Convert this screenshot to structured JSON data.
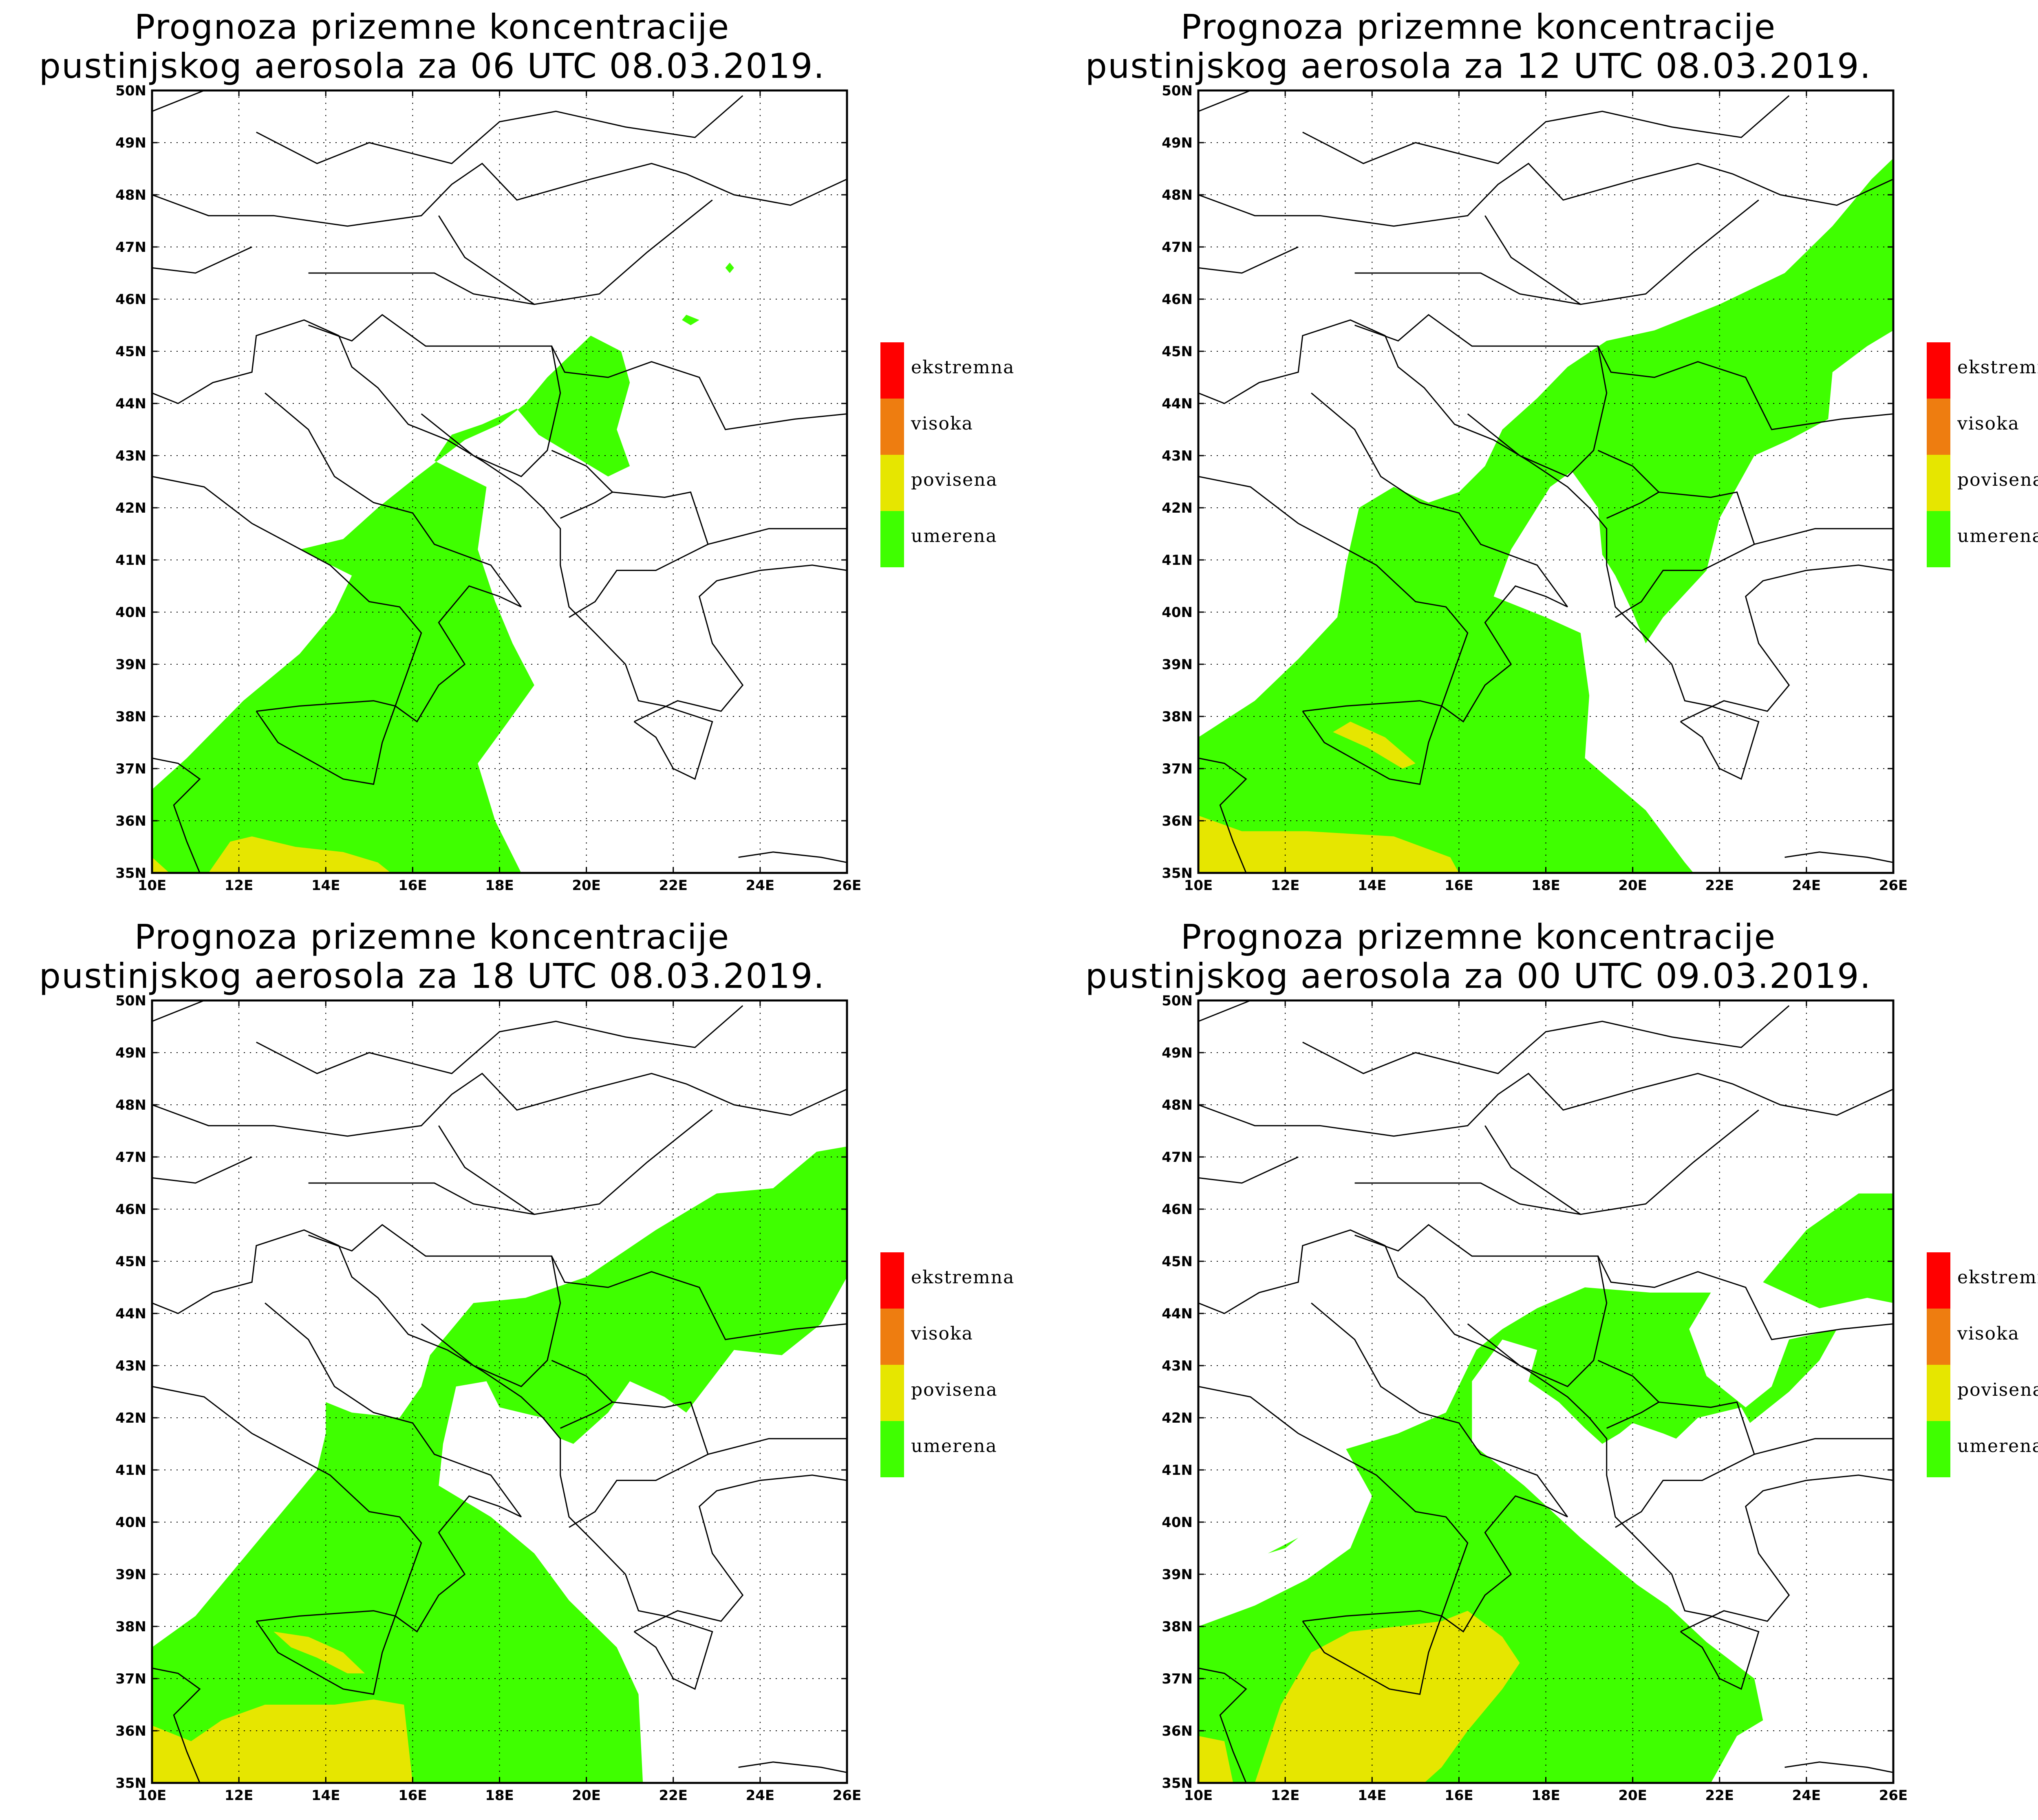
{
  "panels": [
    {
      "title_line1": "Prognoza prizemne koncentracije",
      "title_line2": "pustinjskog aerosola za 06 UTC 08.03.2019."
    },
    {
      "title_line1": "Prognoza prizemne koncentracije",
      "title_line2": "pustinjskog aerosola za 12 UTC 08.03.2019."
    },
    {
      "title_line1": "Prognoza prizemne koncentracije",
      "title_line2": "pustinjskog aerosola za 18 UTC 08.03.2019."
    },
    {
      "title_line1": "Prognoza prizemne koncentracije",
      "title_line2": "pustinjskog aerosola za 00 UTC 09.03.2019."
    }
  ],
  "axes": {
    "lat_labels": [
      "35N",
      "36N",
      "37N",
      "38N",
      "39N",
      "40N",
      "41N",
      "42N",
      "43N",
      "44N",
      "45N",
      "46N",
      "47N",
      "48N",
      "49N",
      "50N"
    ],
    "lon_labels": [
      "10E",
      "12E",
      "14E",
      "16E",
      "18E",
      "20E",
      "22E",
      "24E",
      "26E"
    ]
  },
  "legend": [
    {
      "label": "ekstremna",
      "color": "#ff0000"
    },
    {
      "label": "visoka",
      "color": "#ee7d10"
    },
    {
      "label": "povisena",
      "color": "#e6e600"
    },
    {
      "label": "umerena",
      "color": "#3fff00"
    }
  ],
  "colors": {
    "moderate": "#3fff00",
    "elevated": "#e6e600",
    "border": "#000000"
  }
}
